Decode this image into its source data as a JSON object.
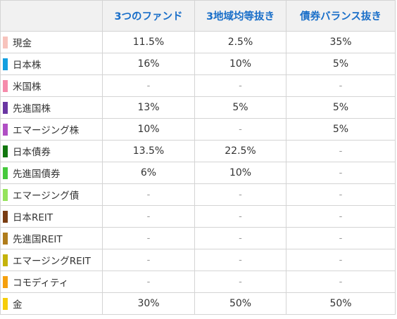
{
  "header": {
    "corner": "",
    "columns": [
      "3つのファンド",
      "3地域均等抜き",
      "債券バランス抜き"
    ]
  },
  "rows": [
    {
      "asset": "現金",
      "color": "#f7c3bc",
      "values": [
        "11.5%",
        "2.5%",
        "35%"
      ]
    },
    {
      "asset": "日本株",
      "color": "#139fe0",
      "values": [
        "16%",
        "10%",
        "5%"
      ]
    },
    {
      "asset": "米国株",
      "color": "#f58bab",
      "values": [
        "-",
        "-",
        "-"
      ]
    },
    {
      "asset": "先進国株",
      "color": "#6a36a2",
      "values": [
        "13%",
        "5%",
        "5%"
      ]
    },
    {
      "asset": "エマージング株",
      "color": "#b04fc4",
      "values": [
        "10%",
        "-",
        "5%"
      ]
    },
    {
      "asset": "日本債券",
      "color": "#12770f",
      "values": [
        "13.5%",
        "22.5%",
        "-"
      ]
    },
    {
      "asset": "先進国債券",
      "color": "#46c93d",
      "values": [
        "6%",
        "10%",
        "-"
      ]
    },
    {
      "asset": "エマージング債",
      "color": "#95e35c",
      "values": [
        "-",
        "-",
        "-"
      ]
    },
    {
      "asset": "日本REIT",
      "color": "#7a3d12",
      "values": [
        "-",
        "-",
        "-"
      ]
    },
    {
      "asset": "先進国REIT",
      "color": "#b07d1c",
      "values": [
        "-",
        "-",
        "-"
      ]
    },
    {
      "asset": "エマージングREIT",
      "color": "#c5b30b",
      "values": [
        "-",
        "-",
        "-"
      ]
    },
    {
      "asset": "コモディティ",
      "color": "#f5a00d",
      "values": [
        "-",
        "-",
        "-"
      ]
    },
    {
      "asset": "金",
      "color": "#f6cd0a",
      "values": [
        "30%",
        "50%",
        "50%"
      ]
    }
  ]
}
